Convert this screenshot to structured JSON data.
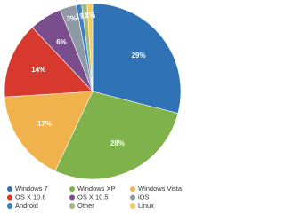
{
  "chart_data": {
    "type": "pie",
    "categories": [
      "Windows 7",
      "Windows XP",
      "Windows Vista",
      "OS X 10.6",
      "OS X 10.5",
      "iOS",
      "Android",
      "Other",
      "Linux"
    ],
    "values": [
      29,
      28,
      17,
      14,
      6,
      3,
      1,
      1,
      1
    ],
    "value_labels": [
      "29%",
      "28%",
      "17%",
      "14%",
      "6%",
      "3%",
      "1%",
      "1%",
      "1%"
    ],
    "colors": [
      "#2f72b6",
      "#7fb24a",
      "#f0b24c",
      "#d8392e",
      "#7a4d8c",
      "#8e99a3",
      "#3c80c4",
      "#a3b879",
      "#f6c95c"
    ],
    "legend": "bottom"
  }
}
